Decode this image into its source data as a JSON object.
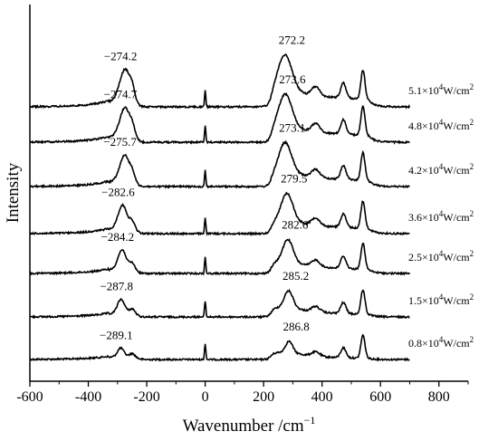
{
  "chart_data": {
    "type": "line",
    "title": "",
    "xlabel_main": "Wavenumber /cm",
    "xlabel_sup": "−1",
    "ylabel": "Intensity",
    "xlim": [
      -600,
      900
    ],
    "xticks": [
      -600,
      -400,
      -200,
      0,
      200,
      400,
      600,
      800
    ],
    "xtick_labels": [
      "-600",
      "-400",
      "-200",
      "0",
      "200",
      "400",
      "600",
      "800"
    ],
    "yticks_shown": false,
    "grid": false,
    "legend": "none",
    "series_x_range": [
      -600,
      700
    ],
    "series": [
      {
        "power": "0.8×10",
        "power_exp": "4",
        "power_unit": "W/cm",
        "power_unit_exp": "2",
        "stokes_label": "286.8",
        "stokes_x": 286.8,
        "antistokes_label": "−289.1",
        "antistokes_x": -289.1,
        "scale": 0.62
      },
      {
        "power": "1.5×10",
        "power_exp": "4",
        "power_unit": "W/cm",
        "power_unit_exp": "2",
        "stokes_label": "285.2",
        "stokes_x": 285.2,
        "antistokes_label": "−287.8",
        "antistokes_x": -287.8,
        "scale": 0.72
      },
      {
        "power": "2.5×10",
        "power_exp": "4",
        "power_unit": "W/cm",
        "power_unit_exp": "2",
        "stokes_label": "282.6",
        "stokes_x": 282.6,
        "antistokes_label": "−284.2",
        "antistokes_x": -284.2,
        "scale": 0.82
      },
      {
        "power": "3.6×10",
        "power_exp": "4",
        "power_unit": "W/cm",
        "power_unit_exp": "2",
        "stokes_label": "279.5",
        "stokes_x": 279.5,
        "antistokes_label": "−282.6",
        "antistokes_x": -282.6,
        "scale": 0.9
      },
      {
        "power": "4.2×10",
        "power_exp": "4",
        "power_unit": "W/cm",
        "power_unit_exp": "2",
        "stokes_label": "273.1",
        "stokes_x": 273.1,
        "antistokes_label": "−275.7",
        "antistokes_x": -275.7,
        "scale": 0.95
      },
      {
        "power": "4.8×10",
        "power_exp": "4",
        "power_unit": "W/cm",
        "power_unit_exp": "2",
        "stokes_label": "273.6",
        "stokes_x": 273.6,
        "antistokes_label": "−274.7",
        "antistokes_x": -274.7,
        "scale": 1.0
      },
      {
        "power": "5.1×10",
        "power_exp": "4",
        "power_unit": "W/cm",
        "power_unit_exp": "2",
        "stokes_label": "272.2",
        "stokes_x": 272.2,
        "antistokes_label": "−274.2",
        "antistokes_x": -274.2,
        "scale": 1.05
      }
    ]
  }
}
